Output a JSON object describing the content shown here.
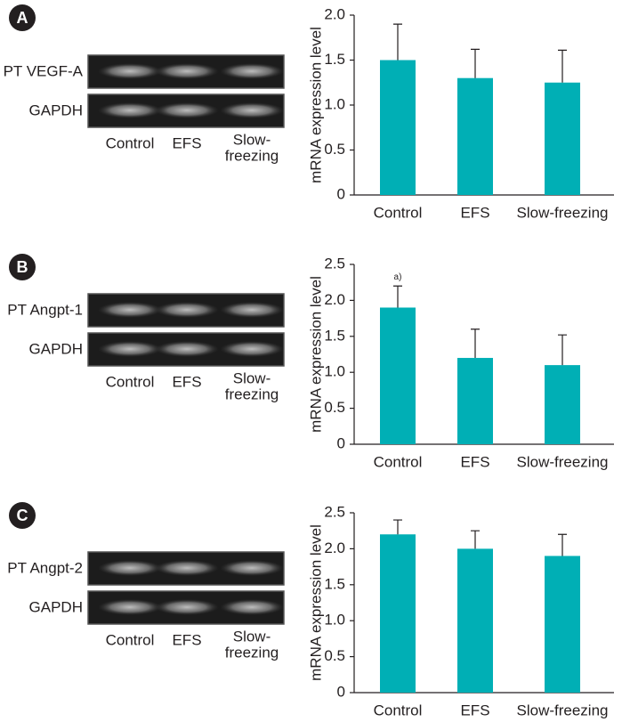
{
  "chart_data": [
    {
      "panel": "A",
      "type": "bar",
      "ylabel": "mRNA expression level",
      "categories": [
        "Control",
        "EFS",
        "Slow-freezing"
      ],
      "values": [
        1.5,
        1.3,
        1.25
      ],
      "errors": [
        0.4,
        0.32,
        0.36
      ],
      "color": "#00afb5",
      "ylim": [
        0,
        2
      ],
      "yticks": [
        0,
        0.5,
        {
          "value": 1,
          "label": "1.0"
        },
        1.5,
        {
          "value": 2,
          "label": "2.0"
        }
      ],
      "gel": {
        "rows": [
          "PT VEGF-A",
          "GAPDH"
        ],
        "lanes": [
          [
            "Control"
          ],
          [
            "EFS"
          ],
          [
            "Slow-",
            "freezing"
          ]
        ]
      }
    },
    {
      "panel": "B",
      "type": "bar",
      "ylabel": "mRNA expression level",
      "categories": [
        "Control",
        "EFS",
        "Slow-freezing"
      ],
      "values": [
        1.9,
        1.2,
        1.1
      ],
      "errors": [
        0.3,
        0.4,
        0.42
      ],
      "color": "#00afb5",
      "ylim": [
        0,
        2.5
      ],
      "yticks": [
        0,
        0.5,
        {
          "value": 1,
          "label": "1.0"
        },
        1.5,
        {
          "value": 2,
          "label": "2.0"
        },
        2.5
      ],
      "annotations": [
        {
          "text": "a)",
          "category": "Control"
        }
      ],
      "gel": {
        "rows": [
          "PT Angpt-1",
          "GAPDH"
        ],
        "lanes": [
          [
            "Control"
          ],
          [
            "EFS"
          ],
          [
            "Slow-",
            "freezing"
          ]
        ]
      }
    },
    {
      "panel": "C",
      "type": "bar",
      "ylabel": "mRNA expression level",
      "categories": [
        "Control",
        "EFS",
        "Slow-freezing"
      ],
      "values": [
        2.2,
        2.0,
        1.9
      ],
      "errors": [
        0.2,
        0.25,
        0.3
      ],
      "color": "#00afb5",
      "ylim": [
        0,
        2.5
      ],
      "yticks": [
        0,
        0.5,
        {
          "value": 1,
          "label": "1.0"
        },
        1.5,
        {
          "value": 2,
          "label": "2.0"
        },
        2.5
      ],
      "gel": {
        "rows": [
          "PT Angpt-2",
          "GAPDH"
        ],
        "lanes": [
          [
            "Control"
          ],
          [
            "EFS"
          ],
          [
            "Slow-",
            "freezing"
          ]
        ]
      }
    }
  ]
}
